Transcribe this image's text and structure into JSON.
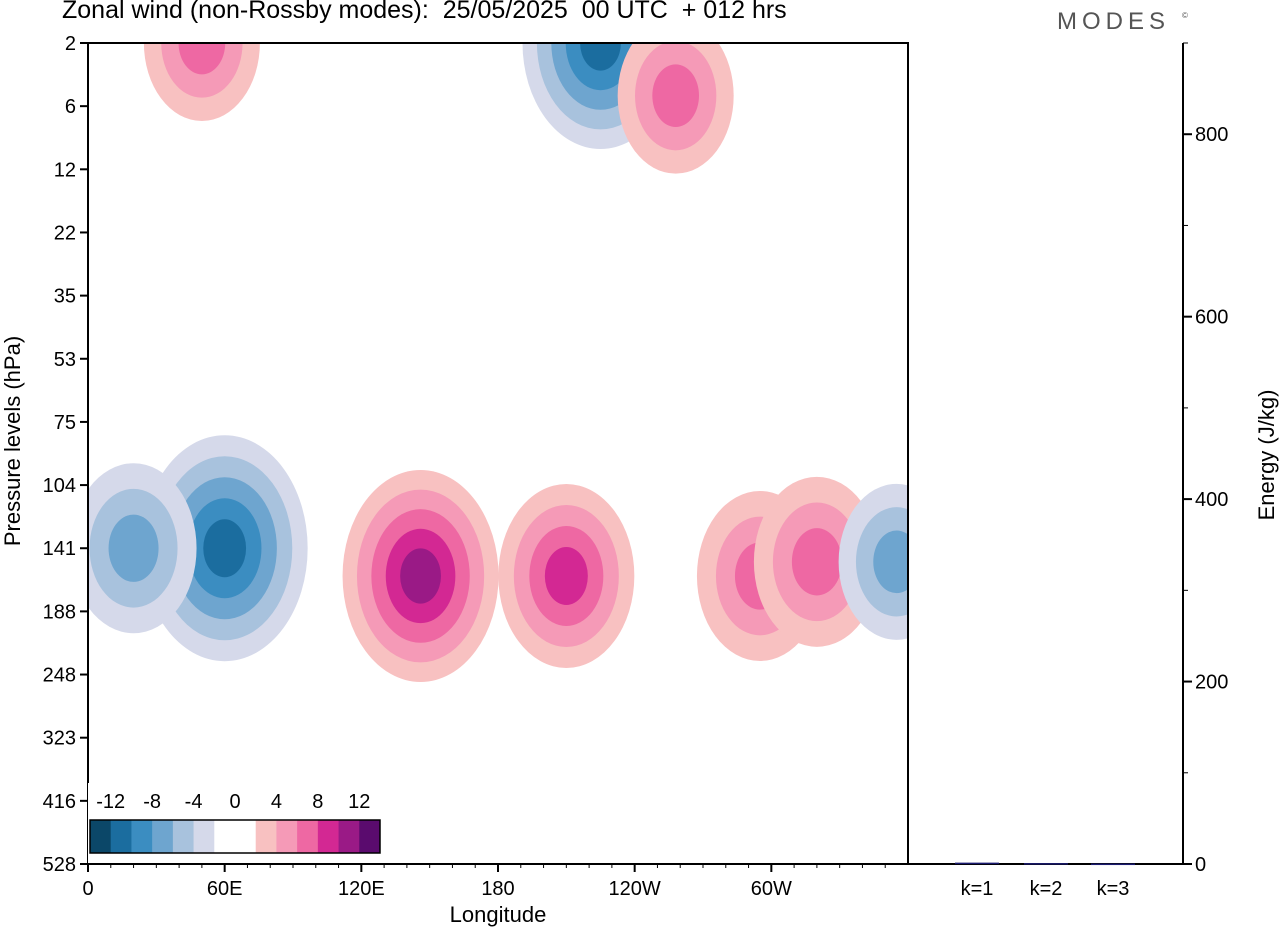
{
  "title": "Zonal wind (non-Rossby modes):  25/05/2025  00 UTC  + 012 hrs",
  "brand": "MODES",
  "brand_mark": "©",
  "colors": {
    "negative": [
      "#0b4768",
      "#1b6d9f",
      "#3b8dc1",
      "#6ea5cf",
      "#a8c2dd",
      "#d5d9ea"
    ],
    "neutral": "#ffffff",
    "positive": [
      "#f8c1c1",
      "#f59ab7",
      "#ee68a3",
      "#d32893",
      "#9a1a86",
      "#5a0b6e"
    ]
  },
  "chart_data": [
    {
      "type": "heatmap",
      "title": "Zonal wind (non-Rossby modes):  25/05/2025  00 UTC  + 012 hrs",
      "xlabel": "Longitude",
      "ylabel": "Pressure levels (hPa)",
      "x_ticks": [
        "0",
        "60E",
        "120E",
        "180",
        "120W",
        "60W"
      ],
      "y_ticks": [
        "2",
        "6",
        "12",
        "22",
        "35",
        "53",
        "75",
        "104",
        "141",
        "188",
        "248",
        "323",
        "416",
        "528"
      ],
      "colorbar": {
        "labels": [
          "-12",
          "-8",
          "-4",
          "0",
          "4",
          "8",
          "12"
        ],
        "bins": 14
      },
      "features": [
        {
          "sign": "neg",
          "lon": 60,
          "lev": 141,
          "value": -11,
          "comment": "strong easterly core"
        },
        {
          "sign": "neg",
          "lon": 20,
          "lev": 141,
          "value": -7
        },
        {
          "sign": "neg",
          "lon": 225,
          "lev": 2,
          "value": -10
        },
        {
          "sign": "pos",
          "lon": 146,
          "lev": 160,
          "value": 10
        },
        {
          "sign": "pos",
          "lon": 210,
          "lev": 160,
          "value": 8
        },
        {
          "sign": "pos",
          "lon": 295,
          "lev": 160,
          "value": 7
        },
        {
          "sign": "pos",
          "lon": 320,
          "lev": 150,
          "value": 7
        },
        {
          "sign": "pos",
          "lon": 258,
          "lev": 5,
          "value": 6
        },
        {
          "sign": "pos",
          "lon": 50,
          "lev": 2,
          "value": 6
        },
        {
          "sign": "neg",
          "lon": 355,
          "lev": 150,
          "value": -6
        }
      ]
    },
    {
      "type": "bar",
      "categories": [
        "k=1",
        "k=2",
        "k=3"
      ],
      "values": [
        1.5,
        1.0,
        0.5
      ],
      "ylabel": "Energy (J/kg)",
      "ylim": [
        0,
        900
      ],
      "y_ticks": [
        0,
        200,
        400,
        600,
        800
      ],
      "bar_color": "#1a1a6e"
    }
  ]
}
